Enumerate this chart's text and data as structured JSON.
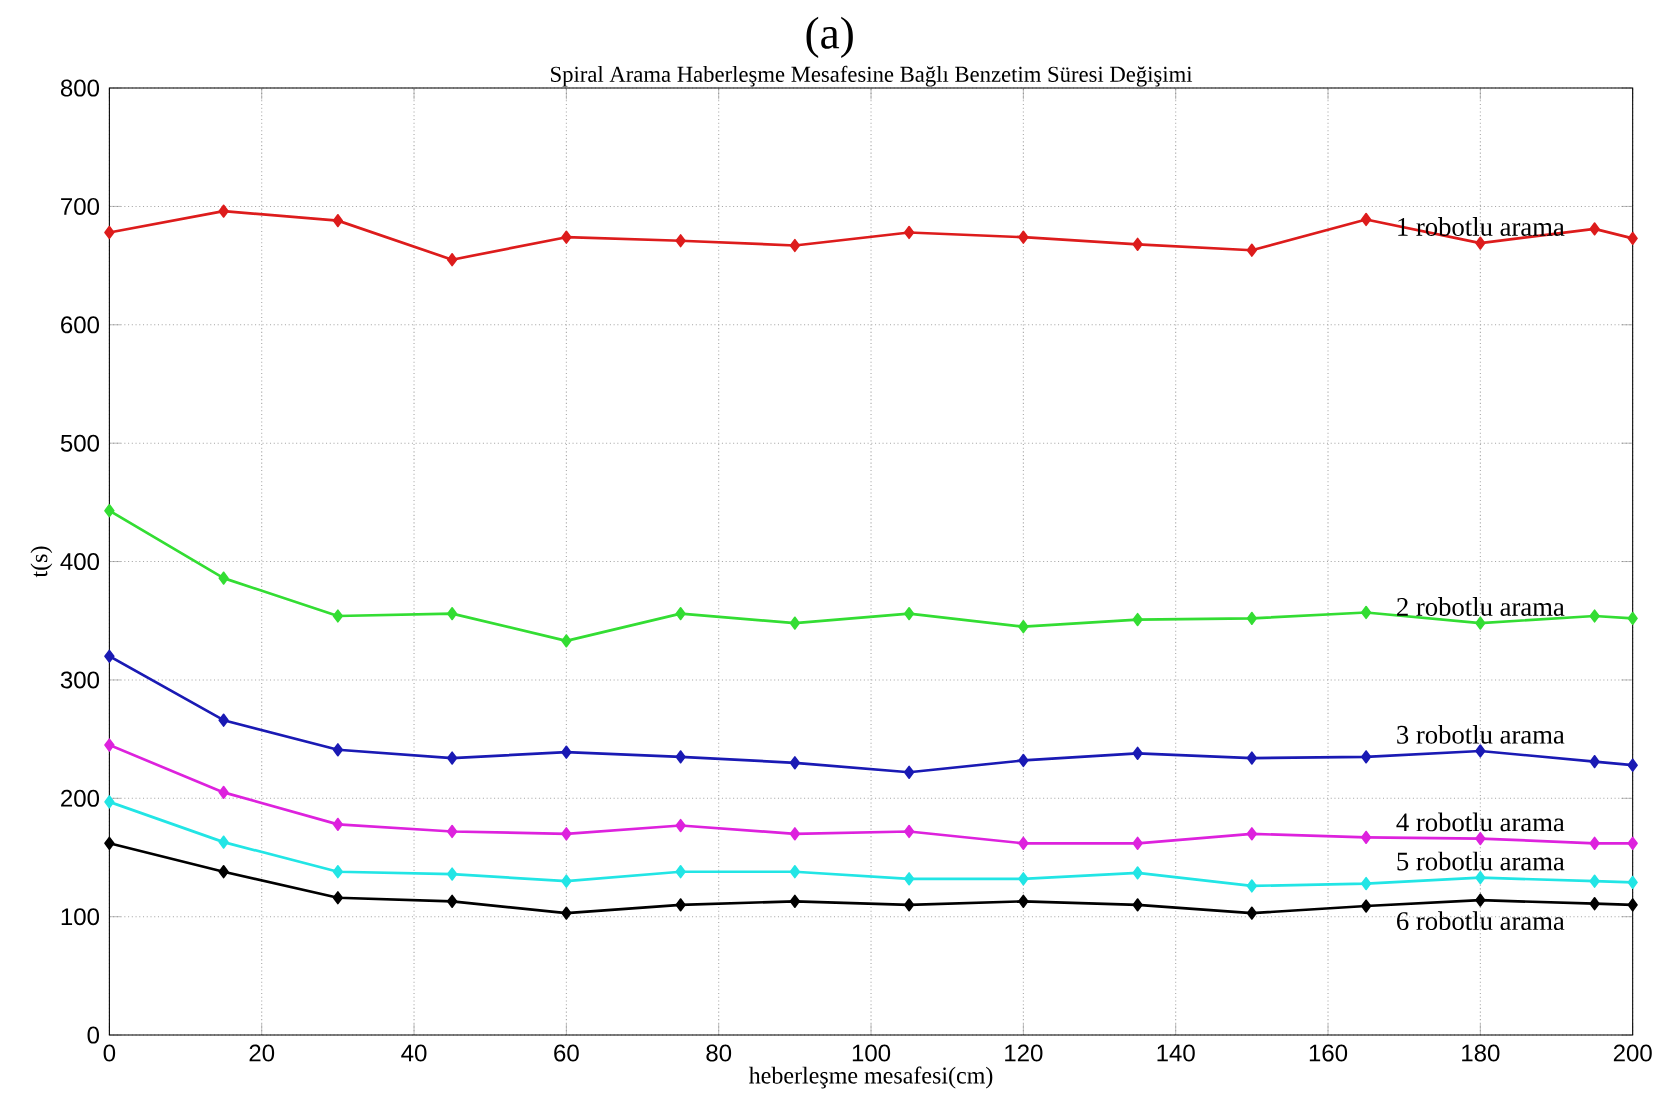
{
  "chart_data": {
    "type": "line",
    "title": "Spiral Arama Haberleşme Mesafesine Bağlı Benzetim Süresi Değişimi",
    "annotations": [
      "(a)"
    ],
    "xlabel": "heberleşme mesafesi(cm)",
    "ylabel": "t(s)",
    "x": [
      0,
      15,
      30,
      45,
      60,
      75,
      90,
      105,
      120,
      135,
      150,
      165,
      180,
      195,
      200
    ],
    "series": [
      {
        "name": "1 robotlu arama",
        "color": "#dd1c1c",
        "values": [
          678,
          696,
          688,
          655,
          674,
          671,
          667,
          678,
          674,
          668,
          663,
          689,
          669,
          681,
          673
        ]
      },
      {
        "name": "2 robotlu arama",
        "color": "#33dd33",
        "values": [
          443,
          386,
          354,
          356,
          333,
          356,
          348,
          356,
          345,
          351,
          352,
          357,
          348,
          354,
          352
        ]
      },
      {
        "name": "3 robotlu arama",
        "color": "#1a1ab4",
        "values": [
          320,
          266,
          241,
          234,
          239,
          235,
          230,
          222,
          232,
          238,
          234,
          235,
          240,
          231,
          228
        ]
      },
      {
        "name": "4 robotlu arama",
        "color": "#dd22dd",
        "values": [
          245,
          205,
          178,
          172,
          170,
          177,
          170,
          172,
          162,
          162,
          170,
          167,
          166,
          162,
          162
        ]
      },
      {
        "name": "5 robotlu arama",
        "color": "#22e5e5",
        "values": [
          197,
          163,
          138,
          136,
          130,
          138,
          138,
          132,
          132,
          137,
          126,
          128,
          133,
          130,
          129
        ]
      },
      {
        "name": "6 robotlu arama",
        "color": "#000000",
        "values": [
          162,
          138,
          116,
          113,
          103,
          110,
          113,
          110,
          113,
          110,
          103,
          109,
          114,
          111,
          110
        ]
      }
    ],
    "xlim": [
      0,
      200
    ],
    "ylim": [
      0,
      800
    ],
    "xticks": [
      0,
      20,
      40,
      60,
      80,
      100,
      120,
      140,
      160,
      180,
      200
    ],
    "yticks": [
      0,
      100,
      200,
      300,
      400,
      500,
      600,
      700,
      800
    ],
    "grid": true,
    "marker": "diamond",
    "line_style": "solid"
  }
}
